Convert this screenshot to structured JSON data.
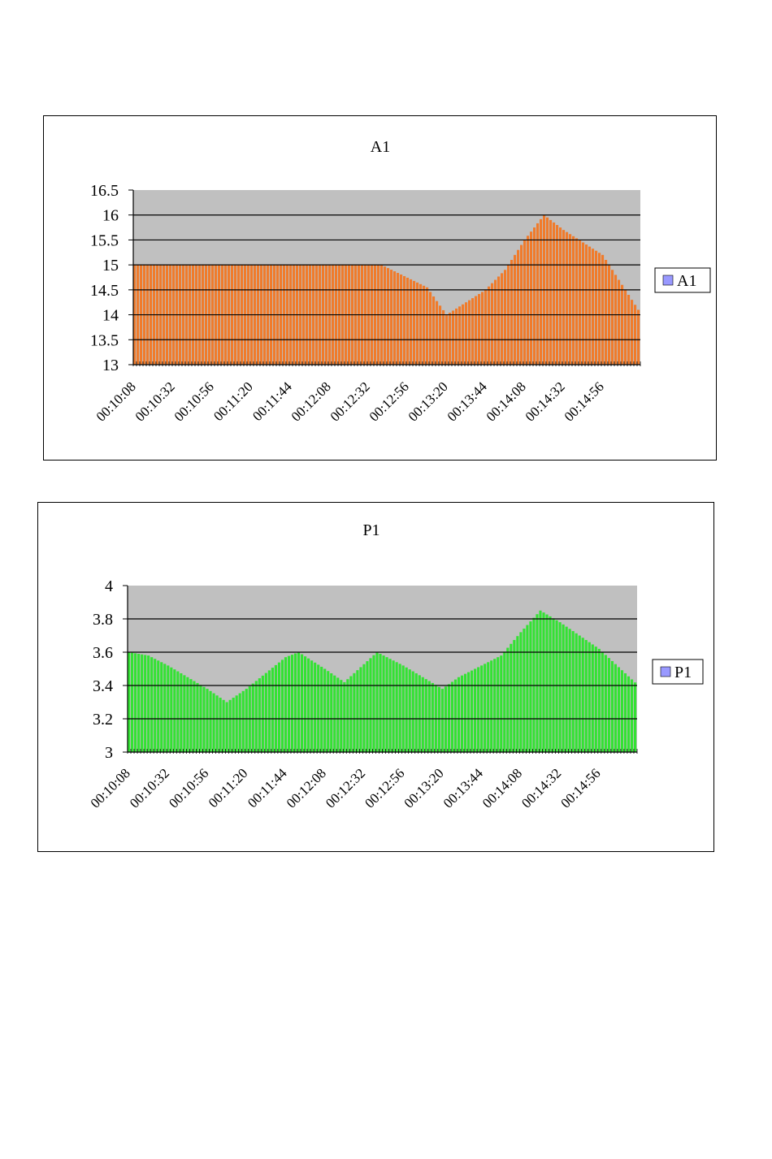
{
  "chart_data": [
    {
      "type": "bar",
      "title": "A1",
      "xlabel": "",
      "ylabel": "",
      "ylim": [
        13,
        16.5
      ],
      "yticks": [
        "13",
        "13.5",
        "14",
        "14.5",
        "15",
        "15.5",
        "16",
        "16.5"
      ],
      "xticks": [
        "00:10:08",
        "00:10:32",
        "00:10:56",
        "00:11:20",
        "00:11:44",
        "00:12:08",
        "00:12:32",
        "00:12:56",
        "00:13:20",
        "00:13:44",
        "00:14:08",
        "00:14:32",
        "00:14:56"
      ],
      "x_start": "00:10:08",
      "x_end": "00:15:20",
      "grid": true,
      "legend": "right",
      "series": [
        {
          "name": "A1",
          "color": "#f07b2b",
          "legend_color": "#9999ff",
          "profile": [
            [
              "00:10:08",
              15.0
            ],
            [
              "00:12:40",
              15.0
            ],
            [
              "00:13:08",
              14.55
            ],
            [
              "00:13:20",
              14.0
            ],
            [
              "00:13:44",
              14.5
            ],
            [
              "00:13:56",
              14.9
            ],
            [
              "00:14:08",
              15.5
            ],
            [
              "00:14:20",
              16.0
            ],
            [
              "00:14:32",
              15.7
            ],
            [
              "00:14:56",
              15.2
            ],
            [
              "00:15:20",
              14.0
            ]
          ]
        }
      ]
    },
    {
      "type": "bar",
      "title": "P1",
      "xlabel": "",
      "ylabel": "",
      "ylim": [
        3,
        4
      ],
      "yticks": [
        "3",
        "3.2",
        "3.4",
        "3.6",
        "3.8",
        "4"
      ],
      "xticks": [
        "00:10:08",
        "00:10:32",
        "00:10:56",
        "00:11:20",
        "00:11:44",
        "00:12:08",
        "00:12:32",
        "00:12:56",
        "00:13:20",
        "00:13:44",
        "00:14:08",
        "00:14:32",
        "00:14:56"
      ],
      "x_start": "00:10:08",
      "x_end": "00:15:20",
      "grid": true,
      "legend": "right",
      "series": [
        {
          "name": "P1",
          "color": "#33e233",
          "legend_color": "#9999ff",
          "profile": [
            [
              "00:10:08",
              3.6
            ],
            [
              "00:10:20",
              3.58
            ],
            [
              "00:10:32",
              3.52
            ],
            [
              "00:10:56",
              3.38
            ],
            [
              "00:11:08",
              3.3
            ],
            [
              "00:11:20",
              3.38
            ],
            [
              "00:11:44",
              3.57
            ],
            [
              "00:11:52",
              3.6
            ],
            [
              "00:12:08",
              3.5
            ],
            [
              "00:12:20",
              3.42
            ],
            [
              "00:12:40",
              3.6
            ],
            [
              "00:12:56",
              3.52
            ],
            [
              "00:13:20",
              3.38
            ],
            [
              "00:13:30",
              3.45
            ],
            [
              "00:13:44",
              3.52
            ],
            [
              "00:13:56",
              3.58
            ],
            [
              "00:14:08",
              3.72
            ],
            [
              "00:14:20",
              3.85
            ],
            [
              "00:14:32",
              3.78
            ],
            [
              "00:14:56",
              3.62
            ],
            [
              "00:15:20",
              3.4
            ]
          ]
        }
      ]
    }
  ]
}
